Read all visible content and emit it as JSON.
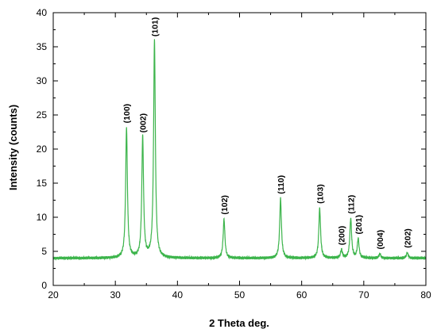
{
  "chart_data": {
    "type": "line",
    "title": "",
    "xlabel": "2 Theta deg.",
    "ylabel": "Intensity (counts)",
    "xlim": [
      20,
      80
    ],
    "ylim": [
      0,
      40
    ],
    "x_ticks": [
      20,
      30,
      40,
      50,
      60,
      70,
      80
    ],
    "y_ticks": [
      0,
      5,
      10,
      15,
      20,
      25,
      30,
      35,
      40
    ],
    "grid": false,
    "legend": "none",
    "line_color": "#3cb44b",
    "baseline": 4.0,
    "peaks": [
      {
        "label": "(100)",
        "x": 31.8,
        "y": 23.1
      },
      {
        "label": "(002)",
        "x": 34.4,
        "y": 21.7
      },
      {
        "label": "(101)",
        "x": 36.3,
        "y": 35.8
      },
      {
        "label": "(102)",
        "x": 47.5,
        "y": 9.7
      },
      {
        "label": "(110)",
        "x": 56.6,
        "y": 12.7
      },
      {
        "label": "(103)",
        "x": 62.9,
        "y": 11.3
      },
      {
        "label": "(200)",
        "x": 66.4,
        "y": 5.2
      },
      {
        "label": "(112)",
        "x": 67.9,
        "y": 9.8
      },
      {
        "label": "(201)",
        "x": 69.1,
        "y": 6.8
      },
      {
        "label": "(004)",
        "x": 72.6,
        "y": 4.6
      },
      {
        "label": "(202)",
        "x": 77.0,
        "y": 4.8
      }
    ]
  }
}
